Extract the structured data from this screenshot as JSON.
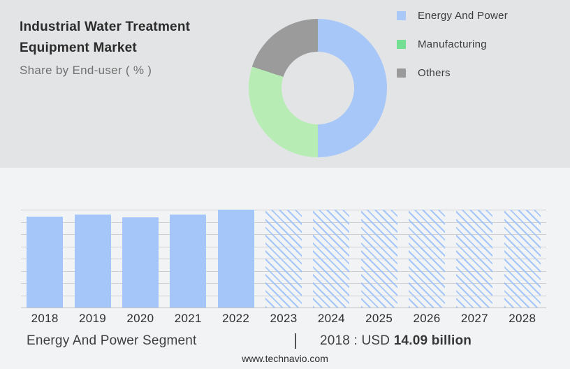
{
  "header": {
    "title": "Industrial Water Treatment Equipment Market",
    "subtitle": "Share by End-user ( % )"
  },
  "legend": {
    "items": [
      {
        "label": "Energy And Power",
        "color": "#a9c7f7"
      },
      {
        "label": "Manufacturing",
        "color": "#72df92"
      },
      {
        "label": "Others",
        "color": "#9a9a9a"
      }
    ]
  },
  "footer": {
    "segment_label": "Energy And Power Segment",
    "separator": "|",
    "value_prefix": "2018 : USD ",
    "value_bold": "14.09 billion",
    "website": "www.technavio.com"
  },
  "colors": {
    "bar_blue": "#a5c6f8",
    "grid": "#cdcfd2",
    "top_background": "#e3e4e5",
    "bottom_background": "#f2f3f5"
  },
  "chart_data": [
    {
      "type": "pie",
      "subtype": "donut",
      "title": "Industrial Water Treatment Equipment Market — Share by End-user ( % )",
      "labels": [
        "Energy And Power",
        "Manufacturing",
        "Others"
      ],
      "values": [
        50,
        30,
        20
      ],
      "values_note": "estimated from arc angles; no numeric labels shown",
      "colors": [
        "#a8c7f9",
        "#b7edb5",
        "#9b9b9b"
      ],
      "legend_position": "right",
      "start_angle_deg": 0,
      "direction": "clockwise"
    },
    {
      "type": "bar",
      "categories": [
        "2018",
        "2019",
        "2020",
        "2021",
        "2022",
        "2023",
        "2024",
        "2025",
        "2026",
        "2027",
        "2028"
      ],
      "values": [
        93,
        95,
        92,
        95,
        100,
        100,
        100,
        100,
        100,
        100,
        100
      ],
      "values_note": "relative bar heights as % of tallest bar; y-axis unlabeled",
      "forecast_categories": [
        "2023",
        "2024",
        "2025",
        "2026",
        "2027",
        "2028"
      ],
      "forecast_style": "diagonal-hatch",
      "bar_color": "#a5c6f8",
      "title": "",
      "xlabel": "",
      "ylabel": "",
      "ylim": [
        0,
        100
      ],
      "grid": true,
      "gridline_intervals": 8,
      "legend_position": "none"
    }
  ]
}
